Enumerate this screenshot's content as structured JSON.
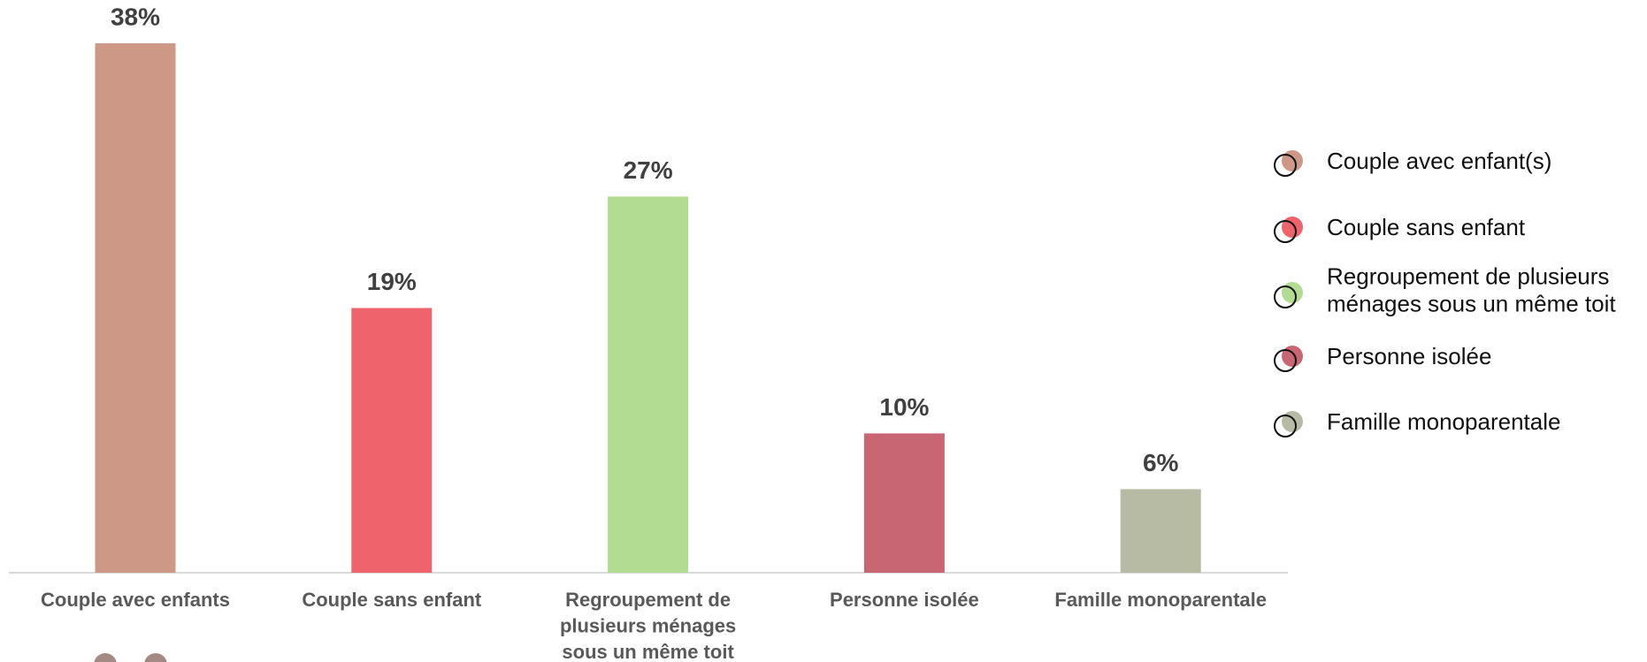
{
  "chart_data": {
    "type": "bar",
    "categories": [
      [
        "Couple avec enfants"
      ],
      [
        "Couple sans enfant"
      ],
      [
        "Regroupement de",
        "plusieurs ménages",
        "sous un même toit"
      ],
      [
        "Personne isolée"
      ],
      [
        "Famille monoparentale"
      ]
    ],
    "values": [
      38,
      19,
      27,
      10,
      6
    ],
    "value_labels": [
      "38%",
      "19%",
      "27%",
      "10%",
      "6%"
    ],
    "colors": [
      "#cd9885",
      "#ef636c",
      "#b3dc93",
      "#c96673",
      "#b8bba3"
    ],
    "legend": [
      [
        "Couple avec enfant(s)"
      ],
      [
        "Couple sans enfant"
      ],
      [
        "Regroupement de plusieurs",
        "ménages sous un même toit"
      ],
      [
        "Personne isolée"
      ],
      [
        "Famille monoparentale"
      ]
    ]
  }
}
